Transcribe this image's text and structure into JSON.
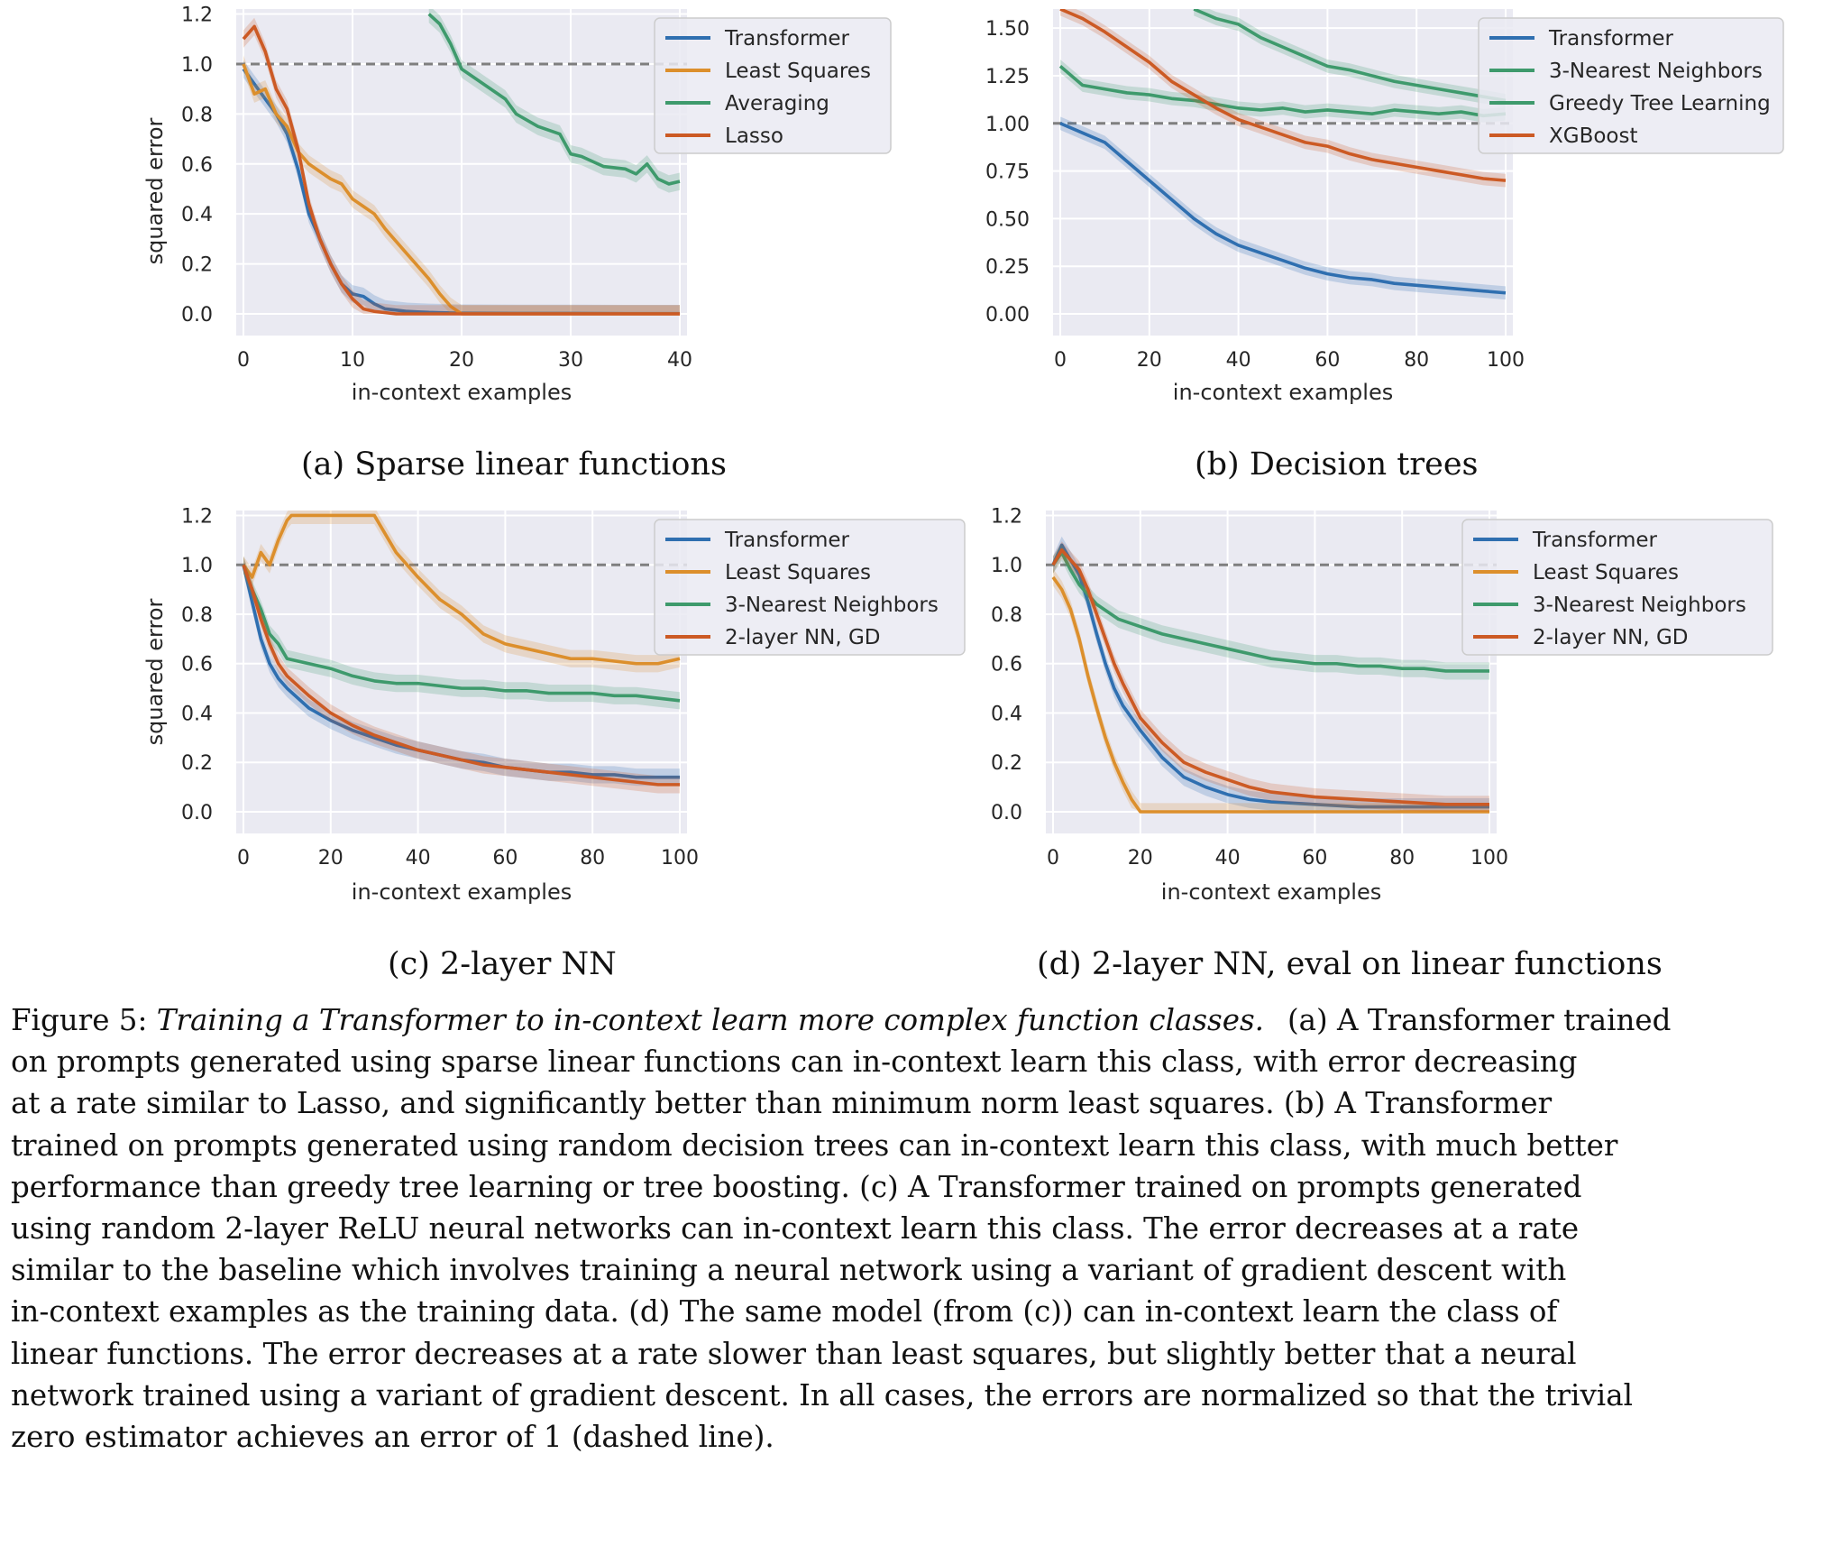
{
  "panels": [
    {
      "id": "a",
      "subcaption": "(a) Sparse linear functions",
      "xlabel": "in-context examples",
      "ylabel": "squared error",
      "xticks": [
        0,
        10,
        20,
        30,
        40
      ],
      "yticks": [
        0.0,
        0.2,
        0.4,
        0.6,
        0.8,
        1.0,
        1.2
      ],
      "ytick_labels": [
        "0.0",
        "0.2",
        "0.4",
        "0.6",
        "0.8",
        "1.0",
        "1.2"
      ],
      "legend": [
        "Transformer",
        "Least Squares",
        "Averaging",
        "Lasso"
      ]
    },
    {
      "id": "b",
      "subcaption": "(b) Decision trees",
      "xlabel": "in-context examples",
      "ylabel": "",
      "xticks": [
        0,
        20,
        40,
        60,
        80,
        100
      ],
      "yticks": [
        0.0,
        0.25,
        0.5,
        0.75,
        1.0,
        1.25,
        1.5
      ],
      "ytick_labels": [
        "0.00",
        "0.25",
        "0.50",
        "0.75",
        "1.00",
        "1.25",
        "1.50"
      ],
      "legend": [
        "Transformer",
        "3-Nearest Neighbors",
        "Greedy Tree Learning",
        "XGBoost"
      ]
    },
    {
      "id": "c",
      "subcaption": "(c) 2-layer NN",
      "xlabel": "in-context examples",
      "ylabel": "squared error",
      "xticks": [
        0,
        20,
        40,
        60,
        80,
        100
      ],
      "yticks": [
        0.0,
        0.2,
        0.4,
        0.6,
        0.8,
        1.0,
        1.2
      ],
      "ytick_labels": [
        "0.0",
        "0.2",
        "0.4",
        "0.6",
        "0.8",
        "1.0",
        "1.2"
      ],
      "legend": [
        "Transformer",
        "Least Squares",
        "3-Nearest Neighbors",
        "2-layer NN, GD"
      ]
    },
    {
      "id": "d",
      "subcaption": "(d) 2-layer NN, eval on linear functions",
      "xlabel": "in-context examples",
      "ylabel": "",
      "xticks": [
        0,
        20,
        40,
        60,
        80,
        100
      ],
      "yticks": [
        0.0,
        0.2,
        0.4,
        0.6,
        0.8,
        1.0,
        1.2
      ],
      "ytick_labels": [
        "0.0",
        "0.2",
        "0.4",
        "0.6",
        "0.8",
        "1.0",
        "1.2"
      ],
      "legend": [
        "Transformer",
        "Least Squares",
        "3-Nearest Neighbors",
        "2-layer NN, GD"
      ]
    }
  ],
  "colors": {
    "transformer": "#2f6fb0",
    "least_squares": "#dc8f2c",
    "averaging": "#3e9a6c",
    "nearest_neighbors": "#3e9a6c",
    "greedy_tree": "#3e9a6c",
    "lasso": "#cc5a24",
    "xgboost": "#cc5a24",
    "nn_gd": "#cc5a24",
    "plot_bg": "#eaeaf2",
    "baseline": "#7f7f7f"
  },
  "caption": {
    "label": "Figure 5: ",
    "title": "Training a Transformer to in-context learn more complex function classes.",
    "lines": [
      "(a) A Transformer trained",
      "on prompts generated using sparse linear functions can in-context learn this class, with error decreasing",
      "at a rate similar to Lasso, and significantly better than minimum norm least squares. (b) A Transformer",
      "trained on prompts generated using random decision trees can in-context learn this class, with much better",
      "performance than greedy tree learning or tree boosting. (c) A Transformer trained on prompts generated",
      "using random 2-layer ReLU neural networks can in-context learn this class. The error decreases at a rate",
      "similar to the baseline which involves training a neural network using a variant of gradient descent with",
      "in-context examples as the training data. (d) The same model (from (c)) can in-context learn the class of",
      "linear functions. The error decreases at a rate slower than least squares, but slightly better that a neural",
      "network trained using a variant of gradient descent. In all cases, the errors are normalized so that the trivial",
      "zero estimator achieves an error of 1 (dashed line)."
    ]
  },
  "chart_data": [
    {
      "type": "line",
      "title": "",
      "xlabel": "in-context examples",
      "ylabel": "squared error",
      "xlim": [
        0,
        40
      ],
      "ylim": [
        0,
        1.2
      ],
      "grid": true,
      "legend_position": "top-right",
      "baseline": {
        "y": 1.0,
        "style": "dashed"
      },
      "series": [
        {
          "name": "Transformer",
          "x": [
            0,
            1,
            2,
            3,
            4,
            5,
            6,
            7,
            8,
            9,
            10,
            11,
            12,
            13,
            14,
            15,
            16,
            17,
            18,
            19,
            20,
            25,
            30,
            35,
            40
          ],
          "values": [
            0.98,
            0.92,
            0.86,
            0.8,
            0.72,
            0.58,
            0.4,
            0.3,
            0.2,
            0.12,
            0.08,
            0.07,
            0.04,
            0.02,
            0.015,
            0.01,
            0.008,
            0.006,
            0.005,
            0.004,
            0.003,
            0.002,
            0.002,
            0.001,
            0.001
          ]
        },
        {
          "name": "Least Squares",
          "x": [
            0,
            1,
            2,
            3,
            4,
            5,
            6,
            7,
            8,
            9,
            10,
            11,
            12,
            13,
            14,
            15,
            16,
            17,
            18,
            19,
            20,
            25,
            30,
            35,
            40
          ],
          "values": [
            1.0,
            0.88,
            0.9,
            0.8,
            0.75,
            0.65,
            0.6,
            0.57,
            0.54,
            0.52,
            0.46,
            0.43,
            0.4,
            0.34,
            0.29,
            0.24,
            0.19,
            0.14,
            0.08,
            0.03,
            0.0,
            0.0,
            0.0,
            0.0,
            0.0
          ]
        },
        {
          "name": "Averaging",
          "x": [
            17,
            18,
            19,
            20,
            22,
            24,
            25,
            27,
            29,
            30,
            31,
            33,
            35,
            36,
            37,
            38,
            39,
            40
          ],
          "values": [
            1.2,
            1.16,
            1.08,
            0.98,
            0.92,
            0.86,
            0.8,
            0.75,
            0.72,
            0.64,
            0.63,
            0.59,
            0.58,
            0.56,
            0.6,
            0.54,
            0.52,
            0.53
          ]
        },
        {
          "name": "Lasso",
          "x": [
            0,
            1,
            2,
            3,
            4,
            5,
            6,
            7,
            8,
            9,
            10,
            11,
            12,
            13,
            14,
            15,
            16,
            18,
            20,
            25,
            30,
            35,
            40
          ],
          "values": [
            1.1,
            1.15,
            1.05,
            0.9,
            0.82,
            0.66,
            0.44,
            0.3,
            0.2,
            0.12,
            0.06,
            0.02,
            0.01,
            0.005,
            0.0,
            0.0,
            0.0,
            0.0,
            0.0,
            0.0,
            0.0,
            0.0,
            0.0
          ]
        }
      ]
    },
    {
      "type": "line",
      "title": "",
      "xlabel": "in-context examples",
      "ylabel": "",
      "xlim": [
        0,
        100
      ],
      "ylim": [
        0,
        1.6
      ],
      "grid": true,
      "legend_position": "top-right",
      "baseline": {
        "y": 1.0,
        "style": "dashed"
      },
      "series": [
        {
          "name": "Transformer",
          "x": [
            0,
            5,
            10,
            15,
            20,
            25,
            30,
            35,
            40,
            45,
            50,
            55,
            60,
            65,
            70,
            75,
            80,
            85,
            90,
            95,
            100
          ],
          "values": [
            1.0,
            0.95,
            0.9,
            0.8,
            0.7,
            0.6,
            0.5,
            0.42,
            0.36,
            0.32,
            0.28,
            0.24,
            0.21,
            0.19,
            0.18,
            0.16,
            0.15,
            0.14,
            0.13,
            0.12,
            0.11
          ]
        },
        {
          "name": "3-Nearest Neighbors",
          "x": [
            0,
            5,
            10,
            15,
            20,
            25,
            30,
            35,
            40,
            45,
            50,
            55,
            60,
            65,
            70,
            75,
            80,
            85,
            90,
            95,
            100
          ],
          "values": [
            1.3,
            1.2,
            1.18,
            1.16,
            1.15,
            1.13,
            1.12,
            1.1,
            1.08,
            1.07,
            1.08,
            1.06,
            1.07,
            1.06,
            1.05,
            1.07,
            1.06,
            1.05,
            1.06,
            1.04,
            1.05
          ]
        },
        {
          "name": "Greedy Tree Learning",
          "x": [
            30,
            35,
            40,
            45,
            50,
            55,
            60,
            65,
            70,
            75,
            80,
            85,
            90,
            95,
            100
          ],
          "values": [
            1.6,
            1.55,
            1.52,
            1.45,
            1.4,
            1.35,
            1.3,
            1.28,
            1.25,
            1.22,
            1.2,
            1.18,
            1.16,
            1.14,
            1.12
          ]
        },
        {
          "name": "XGBoost",
          "x": [
            0,
            5,
            10,
            15,
            20,
            25,
            30,
            35,
            40,
            45,
            50,
            55,
            60,
            65,
            70,
            75,
            80,
            85,
            90,
            95,
            100
          ],
          "values": [
            1.6,
            1.55,
            1.48,
            1.4,
            1.32,
            1.22,
            1.15,
            1.08,
            1.02,
            0.98,
            0.94,
            0.9,
            0.88,
            0.84,
            0.81,
            0.79,
            0.77,
            0.75,
            0.73,
            0.71,
            0.7
          ]
        }
      ]
    },
    {
      "type": "line",
      "title": "",
      "xlabel": "in-context examples",
      "ylabel": "squared error",
      "xlim": [
        0,
        100
      ],
      "ylim": [
        0,
        1.2
      ],
      "grid": true,
      "legend_position": "top-right",
      "baseline": {
        "y": 1.0,
        "style": "dashed"
      },
      "series": [
        {
          "name": "Transformer",
          "x": [
            0,
            2,
            4,
            6,
            8,
            10,
            15,
            20,
            25,
            30,
            35,
            40,
            45,
            50,
            55,
            60,
            65,
            70,
            75,
            80,
            85,
            90,
            95,
            100
          ],
          "values": [
            1.0,
            0.85,
            0.7,
            0.6,
            0.54,
            0.5,
            0.42,
            0.37,
            0.33,
            0.3,
            0.27,
            0.25,
            0.23,
            0.21,
            0.2,
            0.18,
            0.17,
            0.16,
            0.16,
            0.15,
            0.15,
            0.14,
            0.14,
            0.14
          ]
        },
        {
          "name": "Least Squares",
          "x": [
            0,
            2,
            4,
            6,
            8,
            10,
            11,
            30,
            35,
            40,
            45,
            50,
            55,
            60,
            65,
            70,
            75,
            80,
            85,
            90,
            95,
            100
          ],
          "values": [
            1.0,
            0.95,
            1.05,
            1.0,
            1.1,
            1.18,
            1.2,
            1.2,
            1.05,
            0.95,
            0.86,
            0.8,
            0.72,
            0.68,
            0.66,
            0.64,
            0.62,
            0.62,
            0.61,
            0.6,
            0.6,
            0.62
          ]
        },
        {
          "name": "3-Nearest Neighbors",
          "x": [
            0,
            2,
            4,
            6,
            8,
            10,
            15,
            20,
            25,
            30,
            35,
            40,
            45,
            50,
            55,
            60,
            65,
            70,
            75,
            80,
            85,
            90,
            95,
            100
          ],
          "values": [
            1.0,
            0.9,
            0.82,
            0.72,
            0.68,
            0.62,
            0.6,
            0.58,
            0.55,
            0.53,
            0.52,
            0.52,
            0.51,
            0.5,
            0.5,
            0.49,
            0.49,
            0.48,
            0.48,
            0.48,
            0.47,
            0.47,
            0.46,
            0.45
          ]
        },
        {
          "name": "2-layer NN, GD",
          "x": [
            0,
            2,
            4,
            6,
            8,
            10,
            15,
            20,
            25,
            30,
            35,
            40,
            45,
            50,
            55,
            60,
            65,
            70,
            75,
            80,
            85,
            90,
            95,
            100
          ],
          "values": [
            1.0,
            0.9,
            0.78,
            0.68,
            0.6,
            0.55,
            0.47,
            0.4,
            0.35,
            0.31,
            0.28,
            0.25,
            0.23,
            0.21,
            0.19,
            0.18,
            0.17,
            0.16,
            0.15,
            0.14,
            0.13,
            0.12,
            0.11,
            0.11
          ]
        }
      ]
    },
    {
      "type": "line",
      "title": "",
      "xlabel": "in-context examples",
      "ylabel": "",
      "xlim": [
        0,
        100
      ],
      "ylim": [
        0,
        1.2
      ],
      "grid": true,
      "legend_position": "top-right",
      "baseline": {
        "y": 1.0,
        "style": "dashed"
      },
      "series": [
        {
          "name": "Transformer",
          "x": [
            0,
            2,
            4,
            6,
            8,
            10,
            12,
            14,
            16,
            18,
            20,
            25,
            30,
            35,
            40,
            45,
            50,
            60,
            70,
            80,
            90,
            100
          ],
          "values": [
            1.0,
            1.08,
            1.02,
            0.96,
            0.85,
            0.72,
            0.6,
            0.5,
            0.43,
            0.38,
            0.33,
            0.22,
            0.14,
            0.1,
            0.07,
            0.05,
            0.04,
            0.03,
            0.02,
            0.02,
            0.02,
            0.02
          ]
        },
        {
          "name": "Least Squares",
          "x": [
            0,
            2,
            4,
            6,
            8,
            10,
            12,
            14,
            16,
            18,
            20,
            30,
            40,
            50,
            60,
            70,
            80,
            90,
            100
          ],
          "values": [
            0.95,
            0.9,
            0.82,
            0.7,
            0.55,
            0.42,
            0.3,
            0.2,
            0.12,
            0.05,
            0.0,
            0.0,
            0.0,
            0.0,
            0.0,
            0.0,
            0.0,
            0.0,
            0.0
          ]
        },
        {
          "name": "3-Nearest Neighbors",
          "x": [
            0,
            2,
            4,
            6,
            8,
            10,
            15,
            20,
            25,
            30,
            35,
            40,
            45,
            50,
            55,
            60,
            65,
            70,
            75,
            80,
            85,
            90,
            95,
            100
          ],
          "values": [
            1.0,
            1.05,
            0.98,
            0.92,
            0.88,
            0.84,
            0.78,
            0.75,
            0.72,
            0.7,
            0.68,
            0.66,
            0.64,
            0.62,
            0.61,
            0.6,
            0.6,
            0.59,
            0.59,
            0.58,
            0.58,
            0.57,
            0.57,
            0.57
          ]
        },
        {
          "name": "2-layer NN, GD",
          "x": [
            0,
            2,
            4,
            6,
            8,
            10,
            12,
            14,
            16,
            18,
            20,
            25,
            30,
            35,
            40,
            45,
            50,
            60,
            70,
            80,
            90,
            100
          ],
          "values": [
            1.0,
            1.06,
            1.02,
            0.98,
            0.9,
            0.8,
            0.7,
            0.6,
            0.52,
            0.45,
            0.38,
            0.28,
            0.2,
            0.16,
            0.13,
            0.1,
            0.08,
            0.06,
            0.05,
            0.04,
            0.03,
            0.03
          ]
        }
      ]
    }
  ]
}
